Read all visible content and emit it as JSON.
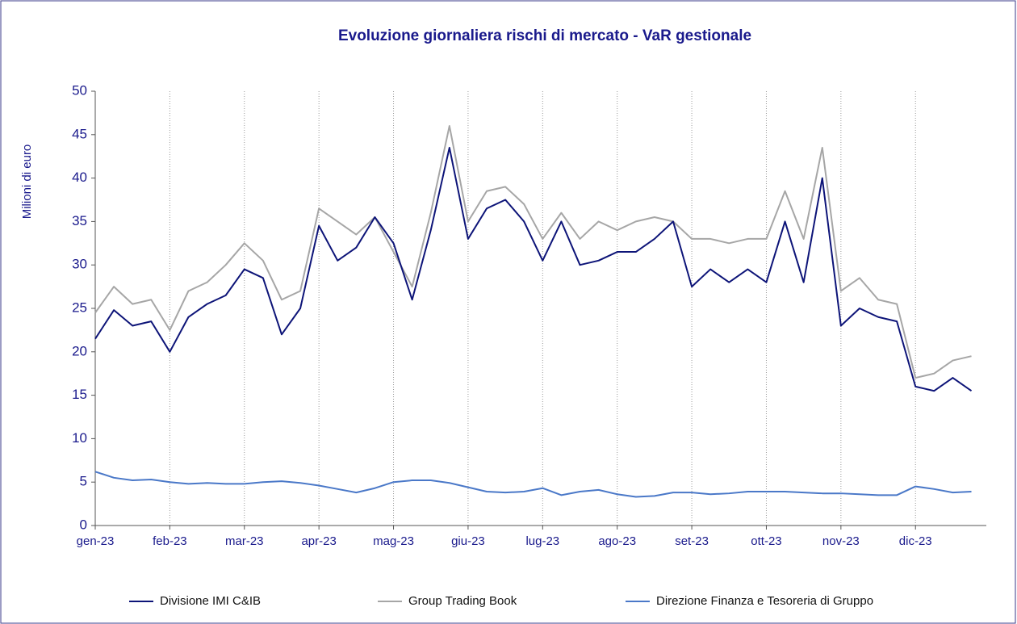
{
  "chart_data": {
    "type": "line",
    "title": "Evoluzione giornaliera rischi di mercato - VaR gestionale",
    "y_label": "Milioni di euro",
    "categories": [
      "gen-23",
      null,
      null,
      null,
      "feb-23",
      null,
      null,
      null,
      "mar-23",
      null,
      null,
      null,
      "apr-23",
      null,
      null,
      null,
      "mag-23",
      null,
      null,
      null,
      "giu-23",
      null,
      null,
      null,
      "lug-23",
      null,
      null,
      null,
      "ago-23",
      null,
      null,
      null,
      "set-23",
      null,
      null,
      null,
      "ott-23",
      null,
      null,
      null,
      "nov-23",
      null,
      null,
      null,
      "dic-23",
      null,
      null,
      null
    ],
    "series": [
      {
        "name": "Divisione IMI C&IB",
        "color": "#0d1478",
        "values": [
          21.5,
          24.8,
          23,
          23.5,
          20,
          24,
          25.5,
          26.5,
          29.5,
          28.5,
          22,
          25,
          34.5,
          30.5,
          32,
          35.5,
          32.5,
          26,
          34,
          43.5,
          33,
          36.5,
          37.5,
          35,
          30.5,
          35,
          30,
          30.5,
          31.5,
          31.5,
          33,
          35,
          27.5,
          29.5,
          28,
          29.5,
          28,
          35,
          28,
          40,
          23,
          25,
          24,
          23.5,
          16,
          15.5,
          17,
          15.5
        ]
      },
      {
        "name": "Group Trading Book",
        "color": "#a6a6a6",
        "values": [
          24.5,
          27.5,
          25.5,
          26,
          22.5,
          27,
          28,
          30,
          32.5,
          30.5,
          26,
          27,
          36.5,
          35,
          33.5,
          35.5,
          31.5,
          27.5,
          36,
          46,
          35,
          38.5,
          39,
          37,
          33,
          36,
          33,
          35,
          34,
          35,
          35.5,
          35,
          33,
          33,
          32.5,
          33,
          33,
          38.5,
          33,
          43.5,
          27,
          28.5,
          26,
          25.5,
          17,
          17.5,
          19,
          19.5
        ]
      },
      {
        "name": "Direzione Finanza e Tesoreria di Gruppo",
        "color": "#4a78c8",
        "values": [
          6.2,
          5.5,
          5.2,
          5.3,
          5,
          4.8,
          4.9,
          4.8,
          4.8,
          5,
          5.1,
          4.9,
          4.6,
          4.2,
          3.8,
          4.3,
          5,
          5.2,
          5.2,
          4.9,
          4.4,
          3.9,
          3.8,
          3.9,
          4.3,
          3.5,
          3.9,
          4.1,
          3.6,
          3.3,
          3.4,
          3.8,
          3.8,
          3.6,
          3.7,
          3.9,
          3.9,
          3.9,
          3.8,
          3.7,
          3.7,
          3.6,
          3.5,
          3.5,
          4.5,
          4.2,
          3.8,
          3.9
        ]
      }
    ],
    "ylim": [
      0,
      50
    ],
    "yticks": [
      0,
      5,
      10,
      15,
      20,
      25,
      30,
      35,
      40,
      45,
      50
    ],
    "xgrid": true,
    "legend": "bottom"
  }
}
